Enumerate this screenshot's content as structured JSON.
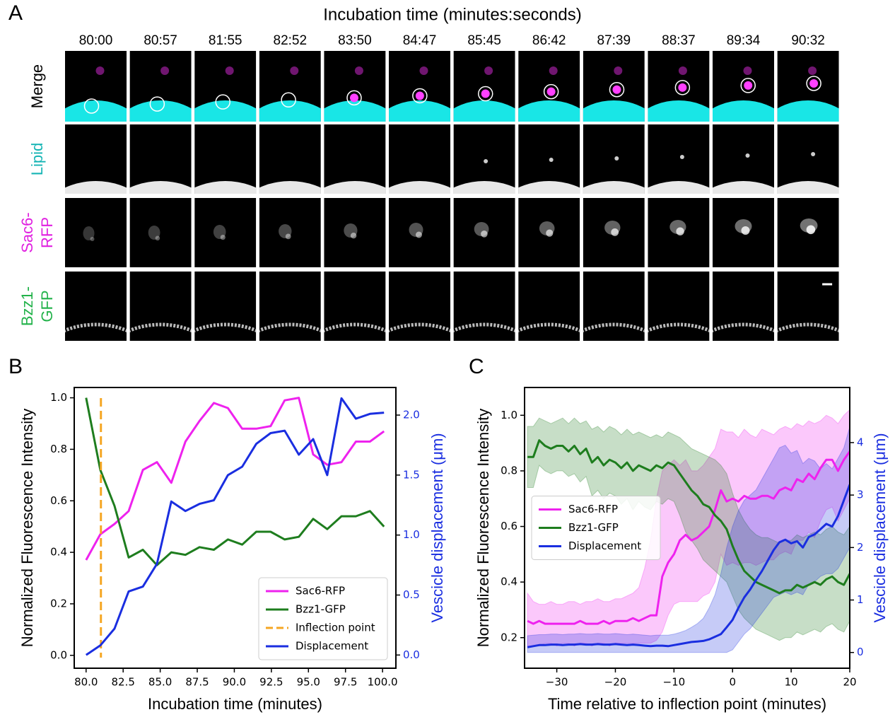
{
  "panel_a": {
    "letter": "A",
    "title": "Incubation time (minutes:seconds)",
    "times": [
      "80:00",
      "80:57",
      "81:55",
      "82:52",
      "83:50",
      "84:47",
      "85:45",
      "86:42",
      "87:39",
      "88:37",
      "89:34",
      "90:32"
    ],
    "rows": [
      [
        "Merge"
      ],
      [
        "Lipid"
      ],
      [
        "Sac6-",
        "RFP"
      ],
      [
        "Bzz1-",
        "GFP"
      ]
    ],
    "row_colors": [
      "#000000",
      "#14b4b4",
      "#e020e0",
      "#22b24a"
    ]
  },
  "chart_data": [
    {
      "type": "line",
      "panel_label": "B",
      "x_label": "Incubation time (minutes)",
      "y_label": "Normalized Fluorescence Intensity",
      "y2_label": "Vescicle displacement (μm)",
      "x": [
        80.0,
        80.96,
        81.92,
        82.87,
        83.83,
        84.78,
        85.75,
        86.7,
        87.65,
        88.62,
        89.57,
        90.53,
        91.48,
        92.45,
        93.4,
        94.35,
        95.32,
        96.27,
        97.23,
        98.2,
        99.15,
        100.1
      ],
      "series": [
        {
          "name": "Sac6-RFP",
          "color": "#ee22ee",
          "values": [
            0.37,
            0.47,
            0.51,
            0.56,
            0.72,
            0.75,
            0.67,
            0.83,
            0.91,
            0.98,
            0.96,
            0.88,
            0.88,
            0.89,
            0.99,
            1.0,
            0.78,
            0.74,
            0.75,
            0.83,
            0.83,
            0.87
          ]
        },
        {
          "name": "Bzz1-GFP",
          "color": "#1e7d1e",
          "values": [
            1.0,
            0.72,
            0.58,
            0.38,
            0.41,
            0.35,
            0.4,
            0.39,
            0.42,
            0.41,
            0.45,
            0.43,
            0.48,
            0.48,
            0.45,
            0.46,
            0.53,
            0.49,
            0.54,
            0.54,
            0.56,
            0.5
          ]
        },
        {
          "name": "Inflection point",
          "color": "#f5a623",
          "x": 81,
          "dashed": true
        },
        {
          "name": "Displacement",
          "color": "#1a2ee0",
          "axis": "y2",
          "values": [
            0.0,
            0.08,
            0.22,
            0.53,
            0.57,
            0.76,
            1.28,
            1.2,
            1.26,
            1.29,
            1.5,
            1.57,
            1.76,
            1.85,
            1.87,
            1.67,
            1.8,
            1.5,
            2.14,
            1.97,
            2.01,
            2.02
          ]
        }
      ],
      "xlim": [
        79.2,
        100.9
      ],
      "ylim": [
        -0.05,
        1.04
      ],
      "y2lim": [
        -0.11,
        2.23
      ],
      "xticks": [
        {
          "value": 80,
          "label": "80.0"
        },
        82.5,
        {
          "value": 85,
          "label": "85.0"
        },
        87.5,
        {
          "value": 90,
          "label": "90.0"
        },
        92.5,
        {
          "value": 95,
          "label": "95.0"
        },
        97.5,
        {
          "value": 100,
          "label": "100.0"
        }
      ],
      "yticks": [
        {
          "value": 0,
          "label": "0.0"
        },
        0.2,
        0.4,
        0.6,
        0.8,
        {
          "value": 1,
          "label": "1.0"
        }
      ],
      "y2ticks": [
        {
          "value": 0,
          "label": "0.0"
        },
        0.5,
        {
          "value": 1,
          "label": "1.0"
        },
        1.5,
        {
          "value": 2,
          "label": "2.0"
        }
      ],
      "y2_color": "#1a2ee0",
      "legend": "lower right"
    },
    {
      "type": "line",
      "panel_label": "C",
      "x_label": "Time relative to inflection point (minutes)",
      "y_label": "Normalized Fluorescence Intensity",
      "y2_label": "Vescicle displacement (μm)",
      "x": [
        -35,
        -34,
        -33,
        -32,
        -31,
        -30,
        -29,
        -28,
        -27,
        -26,
        -25,
        -24,
        -23,
        -22,
        -21,
        -20,
        -19,
        -18,
        -17,
        -16,
        -15,
        -14,
        -13,
        -12,
        -11,
        -10,
        -9,
        -8,
        -7,
        -6,
        -5,
        -4,
        -3,
        -2,
        -1,
        0,
        1,
        2,
        3,
        4,
        5,
        6,
        7,
        8,
        9,
        10,
        11,
        12,
        13,
        14,
        15,
        16,
        17,
        18,
        19,
        20
      ],
      "series": [
        {
          "name": "Sac6-RFP",
          "color": "#ee22ee",
          "values": [
            0.26,
            0.25,
            0.26,
            0.25,
            0.25,
            0.25,
            0.25,
            0.25,
            0.25,
            0.26,
            0.25,
            0.25,
            0.25,
            0.26,
            0.25,
            0.26,
            0.26,
            0.26,
            0.27,
            0.26,
            0.27,
            0.28,
            0.28,
            0.42,
            0.47,
            0.5,
            0.55,
            0.57,
            0.55,
            0.56,
            0.58,
            0.6,
            0.66,
            0.73,
            0.69,
            0.7,
            0.69,
            0.71,
            0.7,
            0.7,
            0.71,
            0.71,
            0.7,
            0.73,
            0.74,
            0.73,
            0.77,
            0.76,
            0.79,
            0.77,
            0.81,
            0.84,
            0.84,
            0.8,
            0.84,
            0.87
          ],
          "upper": [
            0.36,
            0.33,
            0.32,
            0.32,
            0.33,
            0.32,
            0.32,
            0.33,
            0.33,
            0.32,
            0.33,
            0.33,
            0.34,
            0.33,
            0.33,
            0.34,
            0.34,
            0.35,
            0.36,
            0.38,
            0.45,
            0.55,
            0.7,
            0.8,
            0.82,
            0.84,
            0.82,
            0.84,
            0.8,
            0.8,
            0.82,
            0.85,
            0.88,
            0.95,
            0.94,
            0.94,
            0.92,
            0.95,
            0.93,
            0.92,
            0.95,
            0.94,
            0.93,
            0.95,
            0.96,
            0.95,
            0.97,
            0.96,
            0.98,
            0.97,
            0.98,
            1.0,
            0.99,
            0.97,
            1.0,
            1.02
          ],
          "lower": [
            0.17,
            0.17,
            0.17,
            0.18,
            0.18,
            0.17,
            0.18,
            0.18,
            0.17,
            0.18,
            0.18,
            0.17,
            0.18,
            0.18,
            0.17,
            0.18,
            0.18,
            0.18,
            0.18,
            0.18,
            0.18,
            0.18,
            0.19,
            0.22,
            0.28,
            0.32,
            0.33,
            0.33,
            0.33,
            0.33,
            0.35,
            0.36,
            0.4,
            0.5,
            0.46,
            0.47,
            0.46,
            0.47,
            0.47,
            0.46,
            0.47,
            0.48,
            0.48,
            0.5,
            0.51,
            0.5,
            0.55,
            0.55,
            0.58,
            0.56,
            0.62,
            0.66,
            0.67,
            0.62,
            0.66,
            0.7
          ]
        },
        {
          "name": "Bzz1-GFP",
          "color": "#1e7d1e",
          "values": [
            0.85,
            0.85,
            0.91,
            0.89,
            0.88,
            0.89,
            0.89,
            0.87,
            0.89,
            0.86,
            0.88,
            0.83,
            0.85,
            0.82,
            0.84,
            0.83,
            0.81,
            0.83,
            0.8,
            0.82,
            0.81,
            0.8,
            0.82,
            0.81,
            0.83,
            0.82,
            0.79,
            0.76,
            0.73,
            0.71,
            0.68,
            0.67,
            0.64,
            0.62,
            0.59,
            0.53,
            0.48,
            0.44,
            0.42,
            0.4,
            0.39,
            0.38,
            0.37,
            0.36,
            0.37,
            0.37,
            0.39,
            0.38,
            0.39,
            0.4,
            0.39,
            0.41,
            0.42,
            0.4,
            0.39,
            0.43
          ],
          "upper": [
            0.96,
            0.96,
            0.99,
            0.98,
            0.97,
            0.98,
            0.99,
            0.97,
            0.99,
            0.97,
            0.98,
            0.95,
            0.96,
            0.94,
            0.96,
            0.95,
            0.93,
            0.95,
            0.93,
            0.94,
            0.93,
            0.92,
            0.93,
            0.92,
            0.94,
            0.93,
            0.92,
            0.9,
            0.88,
            0.87,
            0.86,
            0.85,
            0.84,
            0.82,
            0.79,
            0.72,
            0.66,
            0.62,
            0.59,
            0.57,
            0.56,
            0.56,
            0.55,
            0.54,
            0.55,
            0.55,
            0.57,
            0.56,
            0.57,
            0.58,
            0.57,
            0.59,
            0.6,
            0.58,
            0.57,
            0.6
          ],
          "lower": [
            0.74,
            0.74,
            0.82,
            0.8,
            0.79,
            0.8,
            0.8,
            0.78,
            0.79,
            0.76,
            0.78,
            0.71,
            0.73,
            0.7,
            0.72,
            0.71,
            0.68,
            0.7,
            0.66,
            0.69,
            0.67,
            0.66,
            0.69,
            0.68,
            0.7,
            0.69,
            0.64,
            0.58,
            0.55,
            0.52,
            0.48,
            0.46,
            0.44,
            0.42,
            0.4,
            0.35,
            0.3,
            0.27,
            0.25,
            0.23,
            0.22,
            0.21,
            0.2,
            0.19,
            0.2,
            0.2,
            0.22,
            0.21,
            0.22,
            0.23,
            0.22,
            0.24,
            0.25,
            0.23,
            0.22,
            0.26
          ]
        },
        {
          "name": "Displacement",
          "color": "#1a2ee0",
          "axis": "y2",
          "values": [
            0.1,
            0.12,
            0.14,
            0.14,
            0.15,
            0.15,
            0.14,
            0.15,
            0.15,
            0.16,
            0.15,
            0.15,
            0.16,
            0.15,
            0.15,
            0.16,
            0.15,
            0.14,
            0.15,
            0.14,
            0.13,
            0.12,
            0.13,
            0.13,
            0.12,
            0.14,
            0.16,
            0.18,
            0.2,
            0.21,
            0.22,
            0.25,
            0.3,
            0.35,
            0.48,
            0.62,
            0.85,
            1.05,
            1.2,
            1.38,
            1.55,
            1.75,
            1.95,
            2.1,
            2.15,
            2.08,
            2.12,
            2.0,
            2.2,
            2.25,
            2.35,
            2.45,
            2.4,
            2.6,
            2.9,
            3.2
          ],
          "upper": [
            0.32,
            0.33,
            0.34,
            0.34,
            0.35,
            0.35,
            0.34,
            0.35,
            0.35,
            0.36,
            0.35,
            0.35,
            0.36,
            0.35,
            0.35,
            0.36,
            0.35,
            0.34,
            0.35,
            0.34,
            0.33,
            0.32,
            0.33,
            0.33,
            0.33,
            0.35,
            0.38,
            0.42,
            0.48,
            0.55,
            0.65,
            0.85,
            1.1,
            1.5,
            2.0,
            2.4,
            2.7,
            2.9,
            3.0,
            3.1,
            3.3,
            3.5,
            3.7,
            3.9,
            3.95,
            3.8,
            3.85,
            3.6,
            3.7,
            3.65,
            3.5,
            3.6,
            3.5,
            3.7,
            3.9,
            4.3
          ],
          "lower": [
            0,
            0,
            0,
            0,
            0,
            0,
            0,
            0,
            0,
            0,
            0,
            0,
            0,
            0,
            0,
            0,
            0,
            0,
            0,
            0,
            0,
            0,
            0,
            0,
            0,
            0,
            0,
            0,
            0,
            0,
            0,
            0,
            0,
            0,
            0,
            0.05,
            0.2,
            0.35,
            0.45,
            0.6,
            0.75,
            0.9,
            1.05,
            1.1,
            1.15,
            1.1,
            1.15,
            1.1,
            1.3,
            1.35,
            1.45,
            1.5,
            1.5,
            1.6,
            1.8,
            2.0
          ]
        }
      ],
      "xlim": [
        -35.5,
        20
      ],
      "ylim": [
        0.09,
        1.1
      ],
      "y2lim": [
        -0.3,
        5.05
      ],
      "xticks": [
        {
          "value": -30,
          "label": "−30"
        },
        {
          "value": -20,
          "label": "−20"
        },
        {
          "value": -10,
          "label": "−10"
        },
        0,
        10,
        20
      ],
      "yticks": [
        0.2,
        0.4,
        0.6,
        0.8,
        {
          "value": 1,
          "label": "1.0"
        }
      ],
      "y2ticks": [
        0,
        1,
        2,
        3,
        4
      ],
      "y2_color": "#1a2ee0",
      "legend": "center left"
    }
  ]
}
